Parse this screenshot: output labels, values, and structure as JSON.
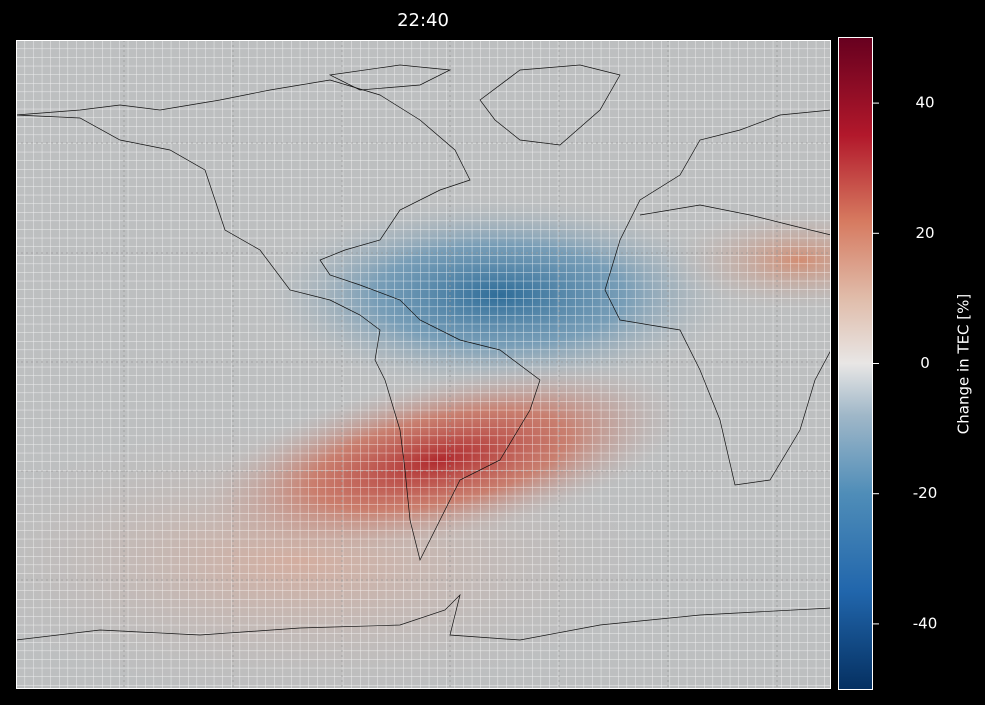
{
  "title": "22:40",
  "colorbar": {
    "label": "Change in TEC [%]",
    "lim": [
      -50,
      50
    ],
    "ticks": [
      -40,
      -20,
      0,
      20,
      40
    ]
  }
}
